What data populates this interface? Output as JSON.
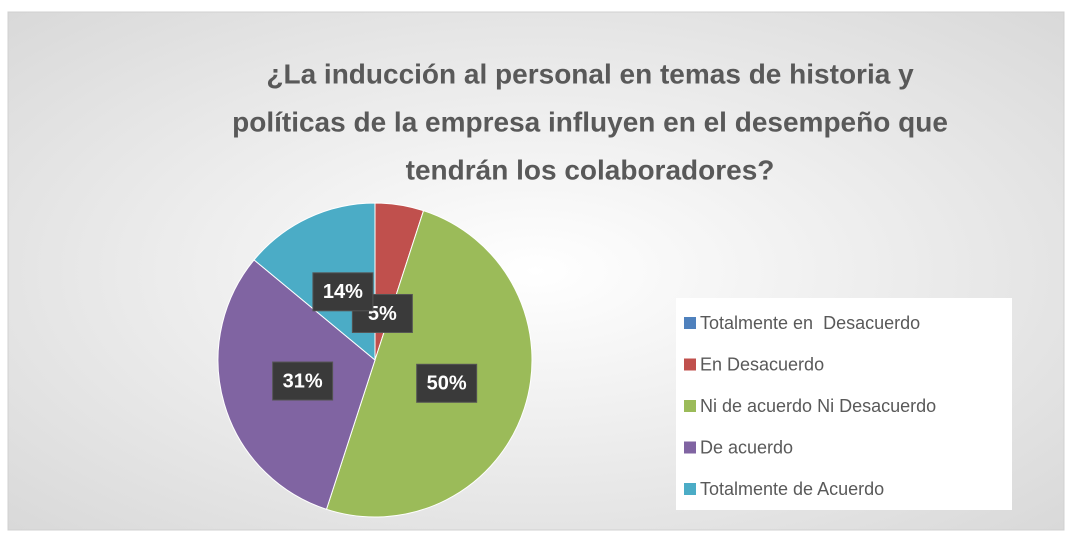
{
  "chart_data": {
    "type": "pie",
    "title": [
      "¿La inducción al personal en temas de historia y",
      "políticas de la empresa influyen en el desempeño que",
      "tendrán los colaboradores?"
    ],
    "categories": [
      "Totalmente en  Desacuerdo",
      "En Desacuerdo",
      "Ni de acuerdo Ni Desacuerdo",
      "De acuerdo",
      "Totalmente de Acuerdo"
    ],
    "values": [
      0,
      5,
      50,
      31,
      14
    ],
    "value_labels": [
      null,
      "5%",
      "50%",
      "31%",
      "14%"
    ],
    "colors": [
      "#4f81bd",
      "#c0504d",
      "#9bbb59",
      "#8064a2",
      "#4bacc6"
    ],
    "legend": "right"
  }
}
